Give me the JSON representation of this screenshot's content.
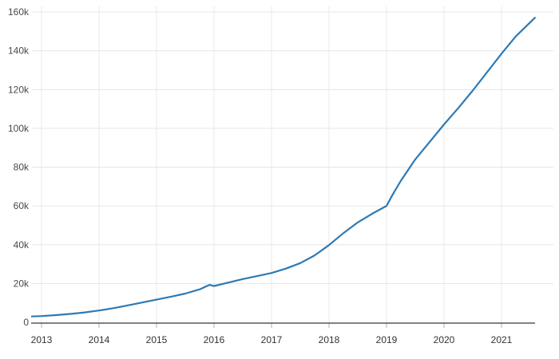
{
  "chart_data": {
    "type": "line",
    "title": "",
    "xlabel": "",
    "ylabel": "",
    "grid": true,
    "legend": "none",
    "x_range": [
      2012.83,
      2021.58
    ],
    "y_range": [
      0,
      160000
    ],
    "y_tick_step": 20000,
    "x_tick_labels": [
      "2013",
      "2014",
      "2015",
      "2016",
      "2017",
      "2018",
      "2019",
      "2020",
      "2021"
    ],
    "x_tick_values": [
      2013,
      2014,
      2015,
      2016,
      2017,
      2018,
      2019,
      2020,
      2021
    ],
    "y_tick_labels": [
      "0",
      "20k",
      "40k",
      "60k",
      "80k",
      "100k",
      "120k",
      "140k",
      "160k"
    ],
    "y_tick_values": [
      0,
      20000,
      40000,
      60000,
      80000,
      100000,
      120000,
      140000,
      160000
    ],
    "series": [
      {
        "name": "value",
        "color": "#2d7ab5",
        "x": [
          2012.83,
          2013.0,
          2013.25,
          2013.5,
          2013.75,
          2014.0,
          2014.25,
          2014.5,
          2014.75,
          2015.0,
          2015.25,
          2015.5,
          2015.75,
          2015.92,
          2016.0,
          2016.25,
          2016.5,
          2016.75,
          2017.0,
          2017.25,
          2017.5,
          2017.75,
          2018.0,
          2018.25,
          2018.5,
          2018.75,
          2019.0,
          2019.1,
          2019.25,
          2019.5,
          2019.75,
          2020.0,
          2020.25,
          2020.5,
          2020.75,
          2021.0,
          2021.25,
          2021.58
        ],
        "y": [
          3000,
          3200,
          3700,
          4300,
          5100,
          6100,
          7300,
          8700,
          10200,
          11700,
          13200,
          14800,
          17000,
          19300,
          18700,
          20500,
          22300,
          23800,
          25400,
          27700,
          30500,
          34500,
          39800,
          46000,
          51500,
          56000,
          60000,
          65500,
          73000,
          84000,
          93000,
          102000,
          110500,
          119500,
          129000,
          138500,
          147500,
          157000
        ]
      }
    ],
    "colors": {
      "line": "#2d7ab5",
      "h_gridline": "#e6e6e6",
      "v_gridline": "#eaeaea",
      "axis_line": "#383838",
      "tick_mark": "#b3b3b3",
      "y_label": "#494949",
      "x_label": "#333333"
    }
  }
}
